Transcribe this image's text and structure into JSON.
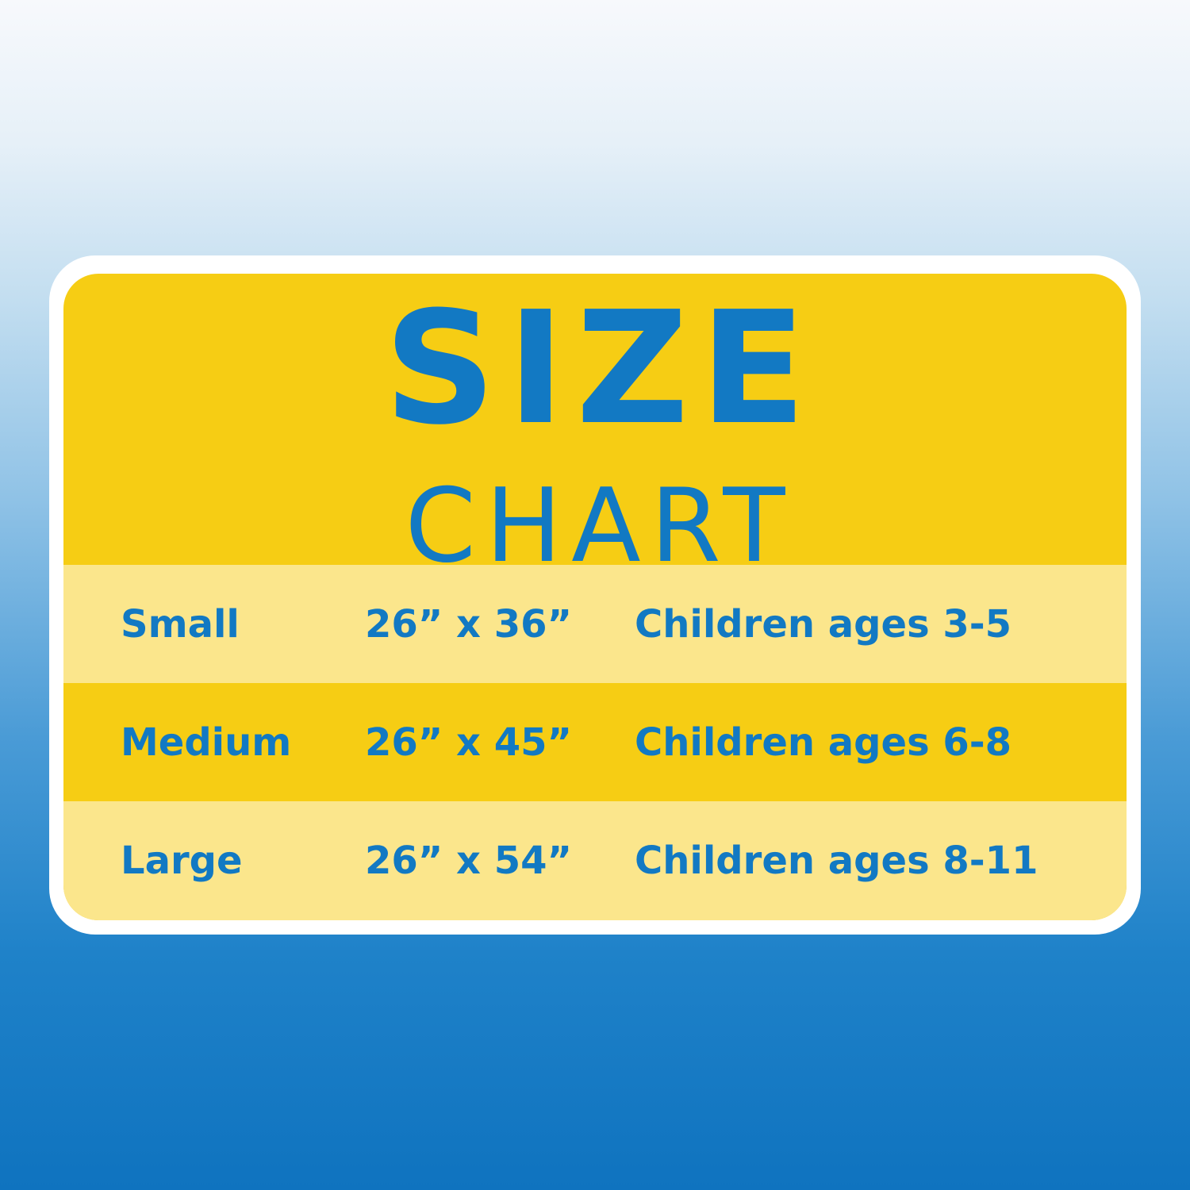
{
  "title": {
    "main": "SIZE",
    "sub": "CHART"
  },
  "colors": {
    "text_blue": "#1279c3",
    "yellow": "#f6cd14",
    "light_yellow": "#fbe68c",
    "border": "#ffffff",
    "bg_bottom": "#0f73bf"
  },
  "rows": [
    {
      "size": "Small",
      "dimensions": "26” x 36”",
      "ages": "Children ages 3-5"
    },
    {
      "size": "Medium",
      "dimensions": "26” x 45”",
      "ages": "Children ages 6-8"
    },
    {
      "size": "Large",
      "dimensions": "26” x 54”",
      "ages": "Children ages 8-11"
    }
  ]
}
